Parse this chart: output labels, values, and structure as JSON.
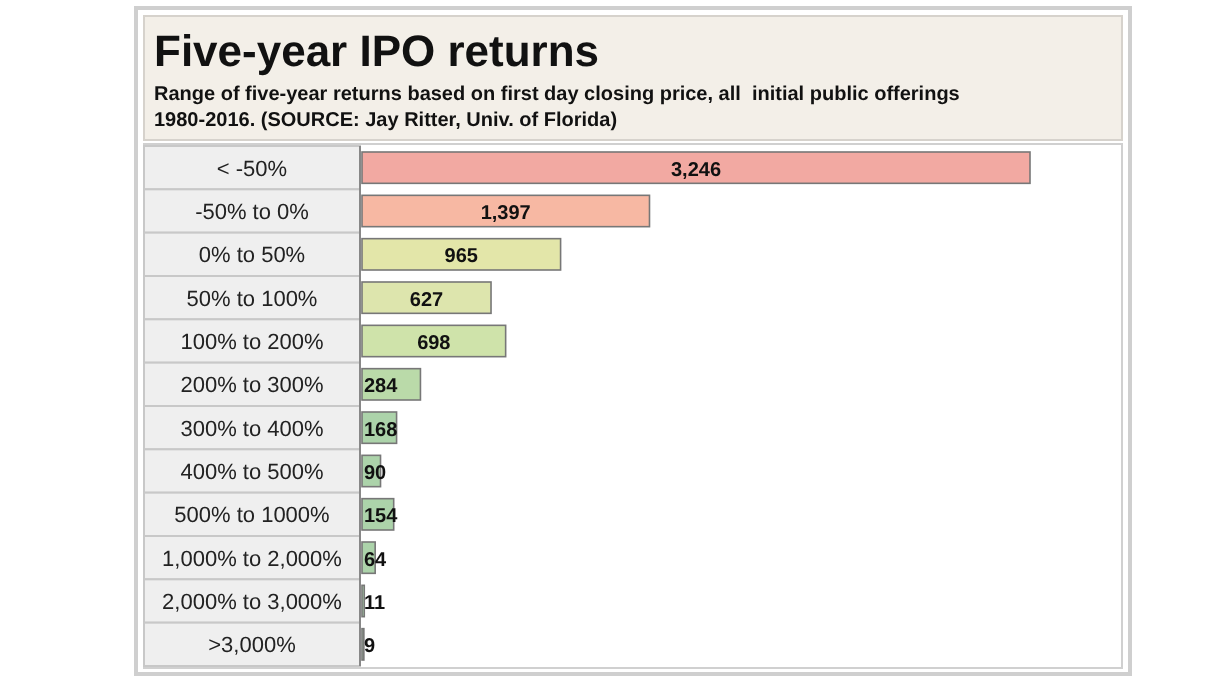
{
  "chart_data": {
    "type": "bar",
    "orientation": "horizontal",
    "title": "Five-year IPO returns",
    "subtitle": "Range of five-year returns based on first day closing price, all  initial public offerings 1980-2016. (SOURCE: Jay Ritter, Univ. of Florida)",
    "categories": [
      "< -50%",
      "-50% to 0%",
      "0% to 50%",
      "50% to 100%",
      "100% to 200%",
      "200% to 300%",
      "300% to 400%",
      "400% to 500%",
      "500% to 1000%",
      "1,000% to 2,000%",
      "2,000% to 3,000%",
      ">3,000%"
    ],
    "values": [
      3246,
      1397,
      965,
      627,
      698,
      284,
      168,
      90,
      154,
      64,
      11,
      9
    ],
    "value_labels": [
      "3,246",
      "1,397",
      "965",
      "627",
      "698",
      "284",
      "168",
      "90",
      "154",
      "64",
      "11",
      "9"
    ],
    "colors": [
      "#f2a9a2",
      "#f7b8a3",
      "#e3e6a9",
      "#dde5ad",
      "#cfe3aa",
      "#badaa9",
      "#acd3aa",
      "#acd3aa",
      "#acd3aa",
      "#acd3aa",
      "#acd3aa",
      "#acd3aa"
    ]
  }
}
